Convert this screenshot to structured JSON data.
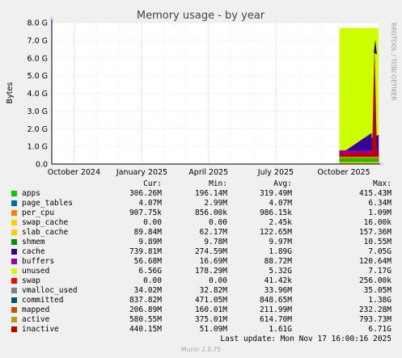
{
  "chart_data": {
    "type": "area",
    "title": "Memory usage - by year",
    "ylabel": "Bytes",
    "side_label": "RRDTOOL / TOBI OETIKER",
    "x_ticks": [
      "October 2024",
      "January 2025",
      "April 2025",
      "July 2025",
      "October 2025"
    ],
    "y_ticks": [
      "0.0",
      "1.0 G",
      "2.0 G",
      "3.0 G",
      "4.0 G",
      "5.0 G",
      "6.0 G",
      "7.0 G",
      "8.0 G"
    ],
    "ylim": [
      0,
      8
    ],
    "unit": "GiB",
    "stacked_recent_period": {
      "start": "2025-09-25",
      "end": "2025-11-17",
      "unused_top": 7.7,
      "inactive_peak": 6.71,
      "cache_peak": 2.0
    },
    "legend_headers": [
      "Cur:",
      "Min:",
      "Avg:",
      "Max:"
    ],
    "series": [
      {
        "name": "apps",
        "color": "#00cc00",
        "cur": "306.26M",
        "min": "196.14M",
        "avg": "319.49M",
        "max": "415.43M"
      },
      {
        "name": "page_tables",
        "color": "#0066b3",
        "cur": "4.07M",
        "min": "2.99M",
        "avg": "4.07M",
        "max": "6.34M"
      },
      {
        "name": "per_cpu",
        "color": "#ff8000",
        "cur": "907.75k",
        "min": "856.00k",
        "avg": "986.15k",
        "max": "1.09M"
      },
      {
        "name": "swap_cache",
        "color": "#ffcc00",
        "cur": "0.00",
        "min": "0.00",
        "avg": "2.45k",
        "max": "16.00k"
      },
      {
        "name": "slab_cache",
        "color": "#ffcc00",
        "cur": "89.84M",
        "min": "62.17M",
        "avg": "122.65M",
        "max": "157.36M"
      },
      {
        "name": "shmem",
        "color": "#008f00",
        "cur": "9.89M",
        "min": "9.78M",
        "avg": "9.97M",
        "max": "10.55M"
      },
      {
        "name": "cache",
        "color": "#330099",
        "cur": "739.81M",
        "min": "274.59M",
        "avg": "1.89G",
        "max": "7.05G"
      },
      {
        "name": "buffers",
        "color": "#990099",
        "cur": "56.68M",
        "min": "16.69M",
        "avg": "88.72M",
        "max": "120.64M"
      },
      {
        "name": "unused",
        "color": "#ccff00",
        "cur": "6.56G",
        "min": "178.29M",
        "avg": "5.32G",
        "max": "7.17G"
      },
      {
        "name": "swap",
        "color": "#ff0000",
        "cur": "0.00",
        "min": "0.00",
        "avg": "41.42k",
        "max": "256.00k"
      },
      {
        "name": "vmalloc_used",
        "color": "#808080",
        "cur": "34.02M",
        "min": "32.82M",
        "avg": "33.96M",
        "max": "35.05M"
      },
      {
        "name": "committed",
        "color": "#005573",
        "cur": "837.82M",
        "min": "471.05M",
        "avg": "848.65M",
        "max": "1.38G"
      },
      {
        "name": "mapped",
        "color": "#cc4c00",
        "cur": "206.89M",
        "min": "160.01M",
        "avg": "211.99M",
        "max": "232.28M"
      },
      {
        "name": "active",
        "color": "#b8a000",
        "cur": "580.55M",
        "min": "375.01M",
        "avg": "614.70M",
        "max": "793.73M"
      },
      {
        "name": "inactive",
        "color": "#bb0000",
        "cur": "440.15M",
        "min": "51.09M",
        "avg": "1.61G",
        "max": "6.71G"
      }
    ]
  },
  "footer": {
    "last_update": "Last update: Mon Nov 17 16:00:16 2025",
    "version": "Munin 2.0.75"
  }
}
